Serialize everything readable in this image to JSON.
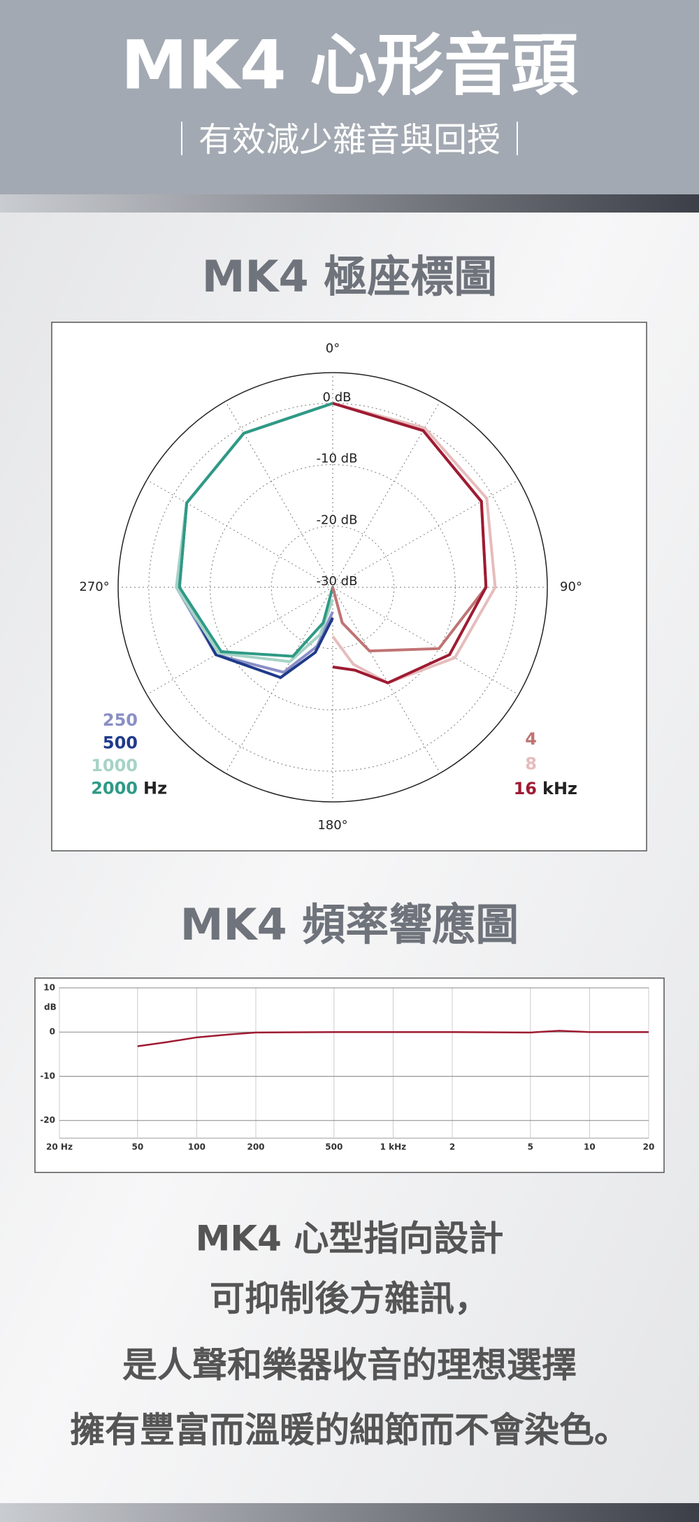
{
  "header": {
    "title": "MK4  心形音頭",
    "subtitle": "｜有效減少雜音與回授｜"
  },
  "sections": [
    "MK4 極座標圖",
    "MK4 頻率響應圖"
  ],
  "chart_data": [
    {
      "type": "polar",
      "rlim": [
        -30,
        5
      ],
      "rticks": [
        {
          "value": 0,
          "label": "0 dB"
        },
        {
          "value": -10,
          "label": "-10 dB"
        },
        {
          "value": -20,
          "label": "-20 dB"
        },
        {
          "value": -30,
          "label": "-30 dB"
        }
      ],
      "thetaticks": [
        {
          "value": 0,
          "label": "0°"
        },
        {
          "value": 90,
          "label": "90°"
        },
        {
          "value": 180,
          "label": "180°"
        },
        {
          "value": 270,
          "label": "270°"
        }
      ],
      "series_groups": [
        {
          "unit": "Hz",
          "series": [
            {
              "name": "250",
              "color": "#8a8fc6",
              "theta": [
                360,
                330,
                300,
                270,
                240,
                210,
                195,
                180
              ],
              "values": [
                0,
                -1,
                -2.5,
                -4.5,
                -8,
                -14,
                -20,
                -26
              ]
            },
            {
              "name": "500",
              "color": "#1f3a8a",
              "theta": [
                360,
                330,
                300,
                270,
                240,
                210,
                195,
                180
              ],
              "values": [
                0,
                -1,
                -2.5,
                -5,
                -8,
                -13,
                -19,
                -25
              ]
            },
            {
              "name": "1000",
              "color": "#a6d3c6",
              "theta": [
                360,
                330,
                300,
                270,
                240,
                210,
                195,
                180
              ],
              "values": [
                0,
                -1,
                -2.5,
                -4.5,
                -8.5,
                -16,
                -22,
                -28
              ]
            },
            {
              "name": "2000",
              "color": "#2e9a85",
              "theta": [
                360,
                330,
                300,
                270,
                240,
                210,
                195,
                180
              ],
              "values": [
                0,
                -1,
                -2.5,
                -5,
                -9,
                -17,
                -24,
                -30
              ]
            }
          ]
        },
        {
          "unit": "kHz",
          "series": [
            {
              "name": "4",
              "color": "#c07373",
              "theta": [
                0,
                30,
                60,
                90,
                120,
                150,
                165,
                180
              ],
              "values": [
                0,
                -0.5,
                -2,
                -5,
                -10,
                -18,
                -24,
                -30
              ]
            },
            {
              "name": "8",
              "color": "#e6bcbc",
              "theta": [
                0,
                30,
                60,
                90,
                120,
                150,
                165,
                180
              ],
              "values": [
                0,
                0,
                -1,
                -3.5,
                -7,
                -12,
                -17,
                -22
              ]
            },
            {
              "name": "16",
              "color": "#9e1b32",
              "theta": [
                0,
                30,
                60,
                90,
                120,
                150,
                165,
                180
              ],
              "values": [
                0,
                -0.5,
                -2,
                -5,
                -8,
                -12,
                -16,
                -17
              ]
            }
          ]
        }
      ]
    },
    {
      "type": "line",
      "log_x": true,
      "xlim": [
        20,
        20000
      ],
      "ylim": [
        -24,
        10
      ],
      "y_unit": "dB",
      "grid": true,
      "xticks": [
        {
          "value": 20,
          "label": "20 Hz"
        },
        50,
        100,
        200,
        500,
        {
          "value": 1000,
          "label": "1 kHz"
        },
        {
          "value": 2000,
          "label": "2"
        },
        {
          "value": 5000,
          "label": "5"
        },
        {
          "value": 10000,
          "label": "10"
        },
        {
          "value": 20000,
          "label": "20"
        }
      ],
      "yticks": [
        10,
        0,
        -10,
        -20
      ],
      "series": [
        {
          "color": "#9e1b32",
          "x": [
            50,
            70,
            100,
            150,
            200,
            500,
            1000,
            2000,
            5000,
            7000,
            10000,
            20000
          ],
          "values": [
            -3.2,
            -2.3,
            -1.2,
            -0.5,
            -0.1,
            0,
            0,
            0,
            -0.1,
            0.3,
            0,
            0
          ]
        }
      ]
    }
  ],
  "body": [
    "MK4 心型指向設計",
    "可抑制後方雜訊，",
    "是人聲和樂器收音的理想選擇",
    "擁有豐富而溫暖的細節而不會染色。"
  ]
}
